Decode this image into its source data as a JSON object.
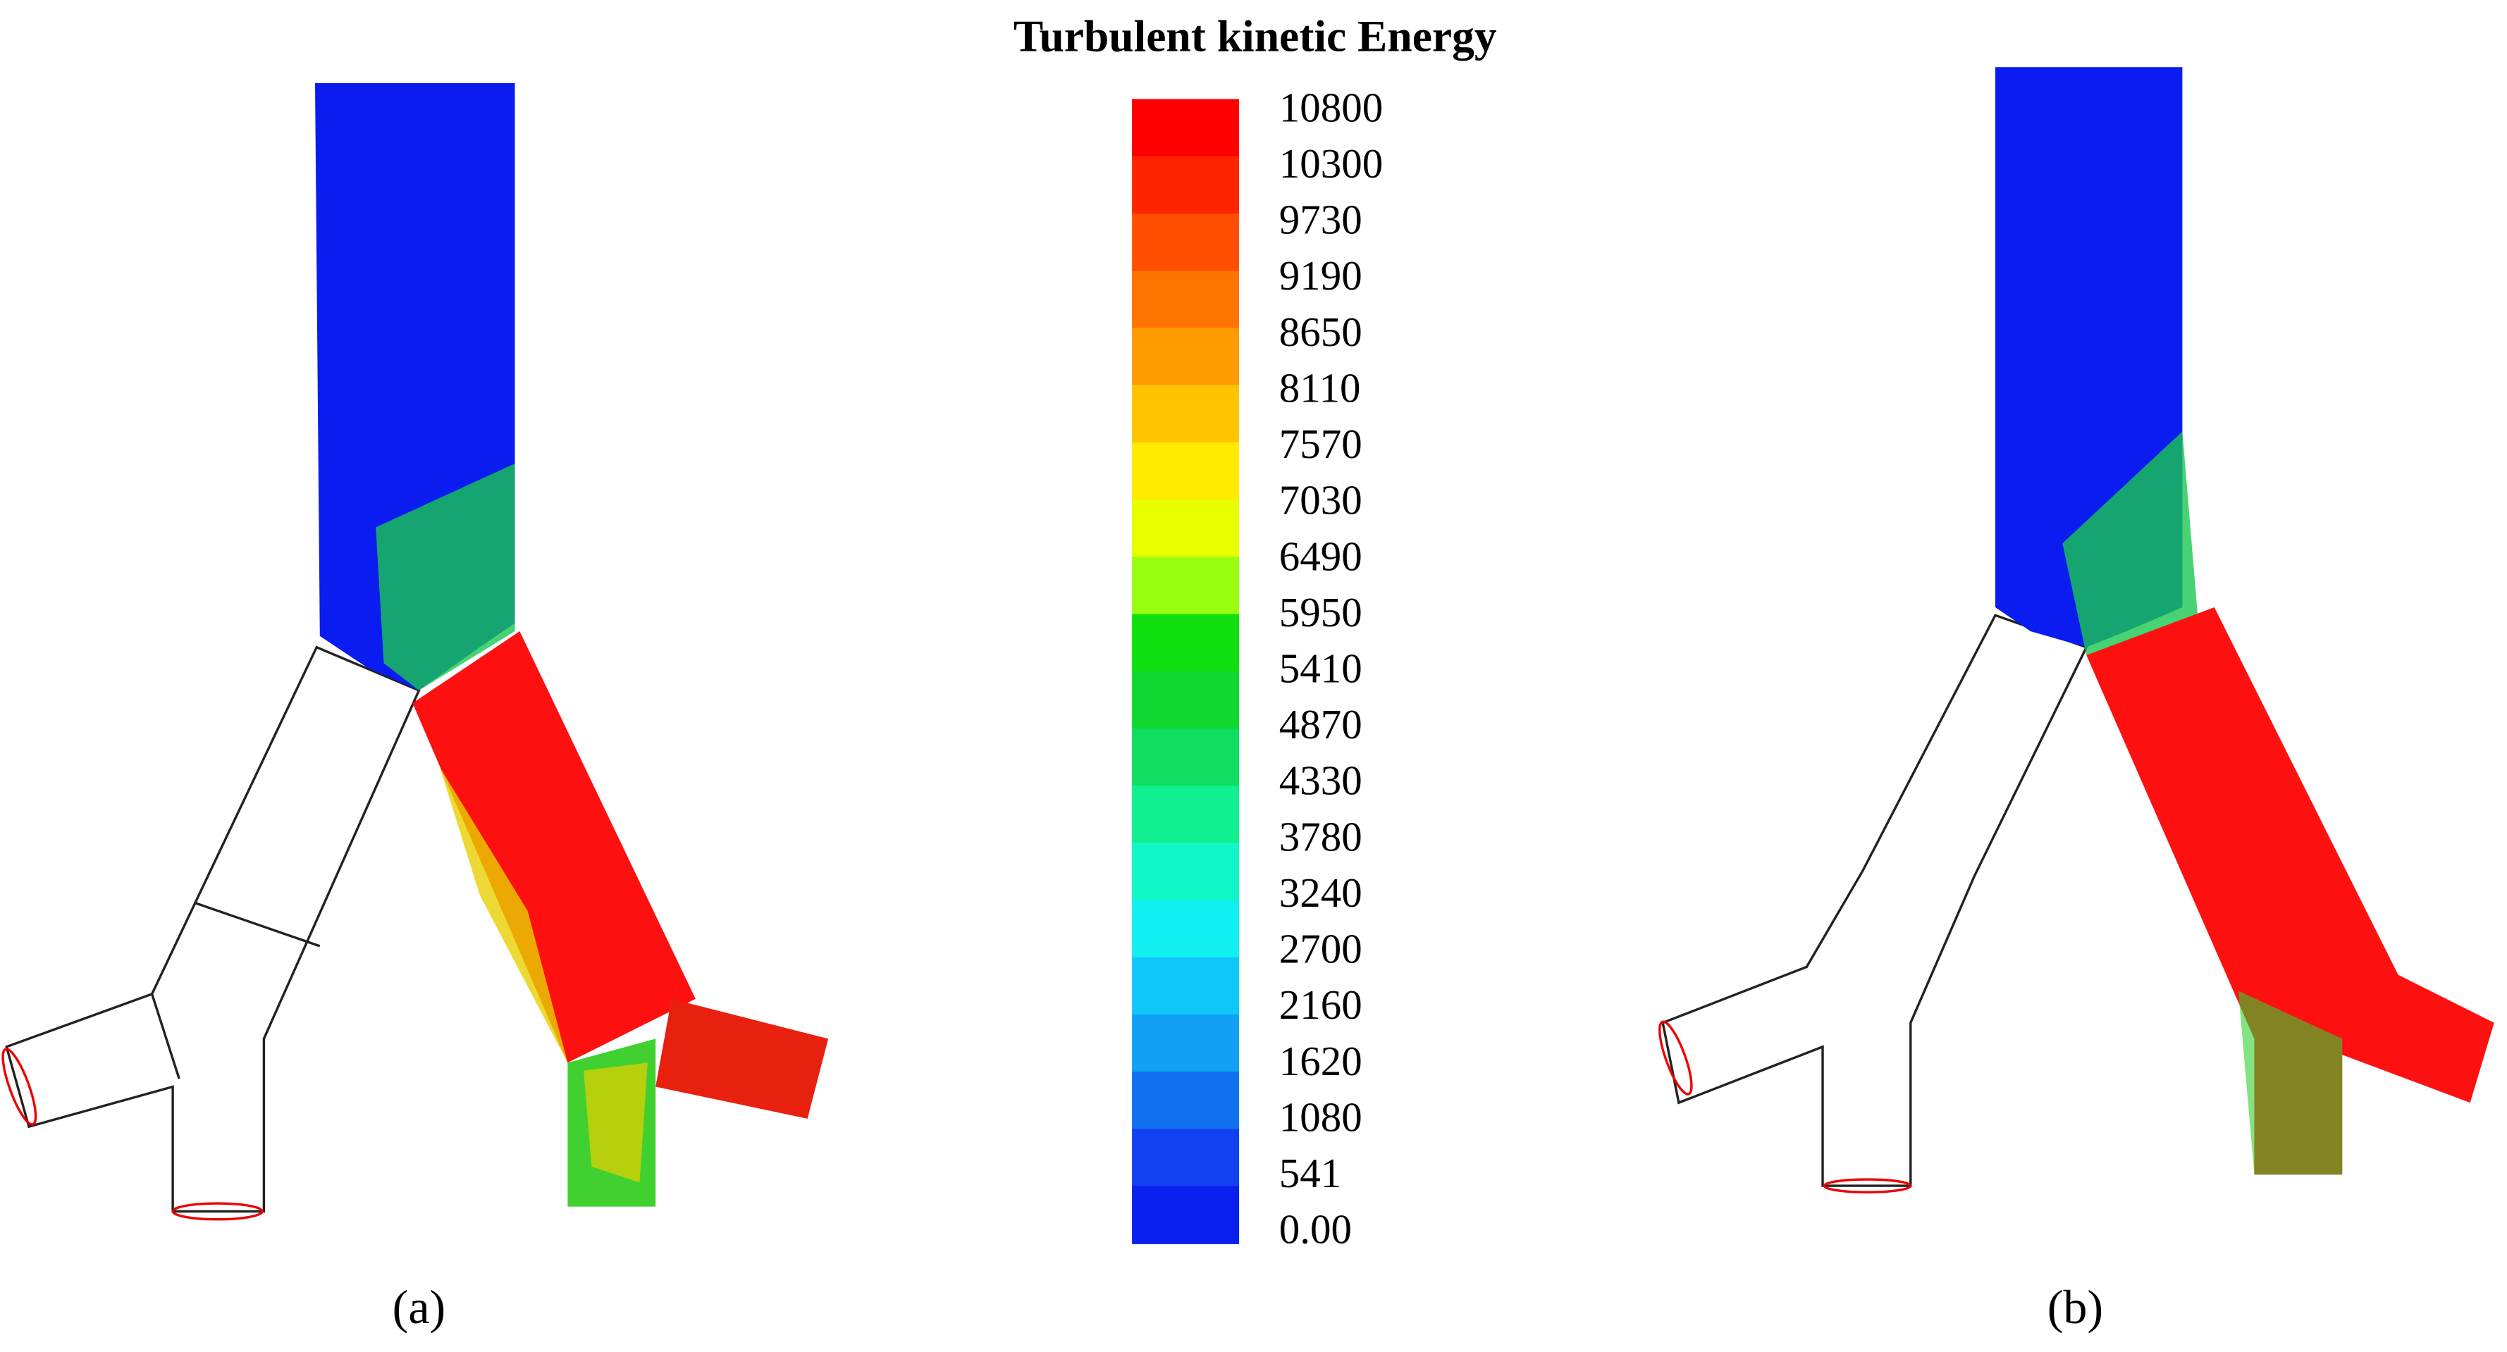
{
  "title": "Turbulent kinetic Energy",
  "colorbar": {
    "labels": [
      "10800",
      "10300",
      "9730",
      "9190",
      "8650",
      "8110",
      "7570",
      "7030",
      "6490",
      "5950",
      "5410",
      "4870",
      "4330",
      "3780",
      "3240",
      "2700",
      "2160",
      "1620",
      "1080",
      "541",
      "0.00"
    ]
  },
  "panels": [
    {
      "label": "(a)"
    },
    {
      "label": "(b)"
    }
  ]
}
